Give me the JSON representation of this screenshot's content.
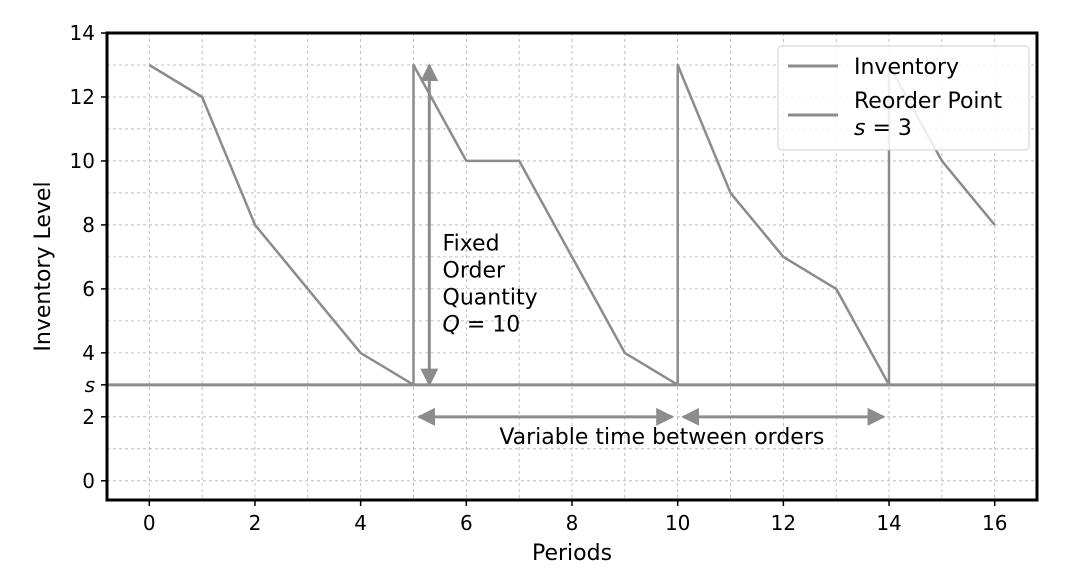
{
  "chart_data": {
    "type": "line",
    "title": "",
    "xlabel": "Periods",
    "ylabel": "Inventory Level",
    "xlim": [
      -0.8,
      16.8
    ],
    "ylim": [
      -0.6,
      14
    ],
    "grid": true,
    "legend_position": "top-right",
    "x_ticks": [
      0,
      2,
      4,
      6,
      8,
      10,
      12,
      14,
      16
    ],
    "y_ticks": [
      {
        "value": 0,
        "label": "0"
      },
      {
        "value": 2,
        "label": "2"
      },
      {
        "value": 3,
        "label": "s"
      },
      {
        "value": 4,
        "label": "4"
      },
      {
        "value": 6,
        "label": "6"
      },
      {
        "value": 8,
        "label": "8"
      },
      {
        "value": 10,
        "label": "10"
      },
      {
        "value": 12,
        "label": "12"
      },
      {
        "value": 14,
        "label": "14"
      }
    ],
    "series": [
      {
        "name": "Inventory",
        "color": "#8c8c8c",
        "points": [
          [
            0,
            13
          ],
          [
            1,
            12
          ],
          [
            2,
            8
          ],
          [
            3,
            6
          ],
          [
            4,
            4
          ],
          [
            5,
            3
          ],
          [
            5,
            13
          ],
          [
            6,
            10
          ],
          [
            7,
            10
          ],
          [
            8,
            7
          ],
          [
            9,
            4
          ],
          [
            10,
            3
          ],
          [
            10,
            13
          ],
          [
            11,
            9
          ],
          [
            12,
            7
          ],
          [
            13,
            6
          ],
          [
            14,
            3
          ],
          [
            14,
            13
          ],
          [
            15,
            10
          ],
          [
            16,
            8
          ]
        ]
      },
      {
        "name": "Reorder Point",
        "name_line2": "s = 3",
        "color": "#8c8c8c",
        "y_value": 3
      }
    ],
    "annotations": {
      "fixed_order": {
        "lines": [
          "Fixed",
          "Order",
          "Quantity"
        ],
        "formula_var": "Q",
        "formula_rest": " = 10",
        "arrow_x": 5.3,
        "arrow_y_from": 3,
        "arrow_y_to": 13
      },
      "variable_time": {
        "text": "Variable time between orders",
        "arrow_y": 2,
        "arrows": [
          [
            5.1,
            9.9
          ],
          [
            10.1,
            13.9
          ]
        ]
      }
    }
  }
}
